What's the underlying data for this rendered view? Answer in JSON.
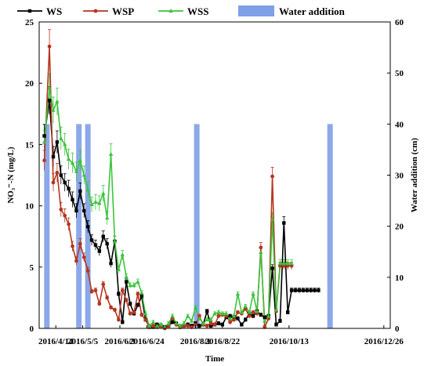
{
  "chart_data": {
    "type": "line",
    "xlabel": "Time",
    "ylabel": "NO₃⁻-N (mg/L)",
    "y2label": "Water addition (cm)",
    "ylim": [
      0,
      25
    ],
    "y2lim": [
      0,
      60
    ],
    "yticks": [
      0,
      5,
      10,
      15,
      20,
      25
    ],
    "y2ticks": [
      0,
      10,
      20,
      30,
      40,
      50,
      60
    ],
    "xlim": [
      "2016-04-01",
      "2016-12-31"
    ],
    "xticks": [
      {
        "date": "2016-04-14",
        "label": "2016/4/14"
      },
      {
        "date": "2016-05-05",
        "label": "2016/5/5"
      },
      {
        "date": "2016-06-03",
        "label": "2016/6/3"
      },
      {
        "date": "2016-06-24",
        "label": "2016/6/24"
      },
      {
        "date": "2016-08-01",
        "label": "2016/8/1"
      },
      {
        "date": "2016-08-22",
        "label": "2016/8/22"
      },
      {
        "date": "2016-10-13",
        "label": "2016/10/13"
      },
      {
        "date": "2016-12-26",
        "label": "2016/12/26"
      }
    ],
    "legend_position": "top",
    "series": [
      {
        "name": "WS",
        "color": "#000000",
        "marker": "square",
        "x": [
          "2016-04-05",
          "2016-04-09",
          "2016-04-12",
          "2016-04-15",
          "2016-04-18",
          "2016-04-21",
          "2016-04-24",
          "2016-04-27",
          "2016-04-30",
          "2016-05-03",
          "2016-05-06",
          "2016-05-09",
          "2016-05-12",
          "2016-05-15",
          "2016-05-18",
          "2016-05-21",
          "2016-05-24",
          "2016-05-27",
          "2016-05-30",
          "2016-06-02",
          "2016-06-05",
          "2016-06-08",
          "2016-06-11",
          "2016-06-14",
          "2016-06-17",
          "2016-06-20",
          "2016-06-23",
          "2016-06-26",
          "2016-06-29",
          "2016-07-02",
          "2016-07-05",
          "2016-07-08",
          "2016-07-11",
          "2016-07-14",
          "2016-07-17",
          "2016-07-20",
          "2016-07-23",
          "2016-07-26",
          "2016-07-29",
          "2016-08-01",
          "2016-08-04",
          "2016-08-07",
          "2016-08-10",
          "2016-08-13",
          "2016-08-16",
          "2016-08-19",
          "2016-08-22",
          "2016-08-25",
          "2016-08-28",
          "2016-08-31",
          "2016-09-03",
          "2016-09-06",
          "2016-09-09",
          "2016-09-12",
          "2016-09-15",
          "2016-09-18",
          "2016-09-21",
          "2016-09-24",
          "2016-09-27",
          "2016-09-30",
          "2016-10-03",
          "2016-10-06",
          "2016-10-09",
          "2016-10-12",
          "2016-10-15",
          "2016-10-18",
          "2016-10-21",
          "2016-10-24",
          "2016-10-27",
          "2016-10-30",
          "2016-11-02",
          "2016-11-05"
        ],
        "y": [
          15.7,
          18.6,
          14.0,
          15.2,
          12.5,
          11.9,
          11.4,
          10.5,
          9.6,
          11.2,
          9.6,
          8.3,
          7.2,
          6.8,
          6.3,
          7.5,
          6.9,
          5.3,
          7.1,
          2.8,
          0.5,
          3.8,
          2.0,
          1.2,
          1.9,
          2.6,
          0.7,
          0.1,
          0.1,
          0.3,
          0.2,
          0.1,
          0.2,
          0.5,
          0.4,
          0.1,
          0.2,
          0.3,
          0.2,
          0.4,
          0.2,
          0.3,
          1.4,
          0.2,
          0.3,
          0.4,
          0.3,
          0.9,
          1.0,
          0.9,
          0.8,
          0.3,
          0.7,
          1.2,
          1.0,
          1.4,
          1.1,
          0.9,
          1.0,
          4.9,
          0.3,
          0.6,
          8.6,
          1.3,
          3.1,
          3.1,
          3.1,
          3.1,
          3.1,
          3.1,
          3.1,
          3.1
        ]
      },
      {
        "name": "WSP",
        "color": "#b5361f",
        "marker": "circle",
        "x": [
          "2016-04-05",
          "2016-04-09",
          "2016-04-12",
          "2016-04-15",
          "2016-04-18",
          "2016-04-21",
          "2016-04-24",
          "2016-04-27",
          "2016-04-30",
          "2016-05-03",
          "2016-05-06",
          "2016-05-09",
          "2016-05-12",
          "2016-05-15",
          "2016-05-18",
          "2016-05-21",
          "2016-05-24",
          "2016-05-27",
          "2016-05-30",
          "2016-06-02",
          "2016-06-05",
          "2016-06-08",
          "2016-06-11",
          "2016-06-14",
          "2016-06-17",
          "2016-06-20",
          "2016-06-23",
          "2016-06-26",
          "2016-06-29",
          "2016-07-02",
          "2016-07-05",
          "2016-07-08",
          "2016-07-11",
          "2016-07-14",
          "2016-07-17",
          "2016-07-20",
          "2016-07-23",
          "2016-07-26",
          "2016-07-29",
          "2016-08-01",
          "2016-08-04",
          "2016-08-07",
          "2016-08-10",
          "2016-08-13",
          "2016-08-16",
          "2016-08-19",
          "2016-08-22",
          "2016-08-25",
          "2016-08-28",
          "2016-08-31",
          "2016-09-03",
          "2016-09-06",
          "2016-09-09",
          "2016-09-12",
          "2016-09-15",
          "2016-09-18",
          "2016-09-21",
          "2016-09-24",
          "2016-09-27",
          "2016-09-30",
          "2016-10-03",
          "2016-10-06",
          "2016-10-09",
          "2016-10-12",
          "2016-10-15"
        ],
        "y": [
          13.7,
          23.0,
          11.9,
          12.7,
          9.7,
          9.2,
          8.5,
          6.7,
          5.5,
          6.9,
          5.8,
          4.7,
          3.0,
          3.1,
          2.0,
          3.6,
          2.5,
          1.7,
          1.5,
          0.7,
          3.1,
          2.3,
          1.2,
          1.3,
          2.8,
          1.1,
          0.7,
          0.1,
          0.2,
          0.1,
          0.2,
          0.0,
          0.2,
          0.8,
          0.3,
          0.1,
          0.2,
          0.2,
          0.1,
          0.3,
          1.0,
          0.3,
          0.2,
          0.4,
          0.3,
          1.0,
          1.1,
          1.0,
          0.5,
          0.7,
          1.3,
          1.2,
          1.6,
          1.0,
          1.3,
          1.2,
          6.6,
          0.1,
          0.8,
          12.4,
          1.4,
          5.1,
          5.1,
          5.1,
          5.1
        ]
      },
      {
        "name": "WSS",
        "color": "#3cc43c",
        "marker": "triangle",
        "x": [
          "2016-04-05",
          "2016-04-09",
          "2016-04-12",
          "2016-04-15",
          "2016-04-18",
          "2016-04-21",
          "2016-04-24",
          "2016-04-27",
          "2016-04-30",
          "2016-05-03",
          "2016-05-06",
          "2016-05-09",
          "2016-05-12",
          "2016-05-15",
          "2016-05-18",
          "2016-05-21",
          "2016-05-24",
          "2016-05-27",
          "2016-05-30",
          "2016-06-02",
          "2016-06-05",
          "2016-06-08",
          "2016-06-11",
          "2016-06-14",
          "2016-06-17",
          "2016-06-20",
          "2016-06-23",
          "2016-06-26",
          "2016-06-29",
          "2016-07-02",
          "2016-07-05",
          "2016-07-08",
          "2016-07-11",
          "2016-07-14",
          "2016-07-17",
          "2016-07-20",
          "2016-07-23",
          "2016-07-26",
          "2016-07-29",
          "2016-08-01",
          "2016-08-04",
          "2016-08-07",
          "2016-08-10",
          "2016-08-13",
          "2016-08-16",
          "2016-08-19",
          "2016-08-22",
          "2016-08-25",
          "2016-08-28",
          "2016-08-31",
          "2016-09-03",
          "2016-09-06",
          "2016-09-09",
          "2016-09-12",
          "2016-09-15",
          "2016-09-18",
          "2016-09-21",
          "2016-09-24",
          "2016-09-27",
          "2016-09-30",
          "2016-10-03",
          "2016-10-06",
          "2016-10-09",
          "2016-10-12",
          "2016-10-15"
        ],
        "y": [
          15.2,
          19.6,
          17.8,
          18.5,
          15.5,
          15.0,
          13.8,
          13.5,
          12.8,
          13.7,
          12.5,
          11.3,
          10.1,
          10.3,
          10.2,
          11.0,
          9.0,
          14.2,
          7.1,
          4.8,
          6.0,
          4.2,
          3.5,
          3.5,
          3.8,
          2.9,
          1.2,
          0.2,
          0.5,
          0.2,
          0.3,
          0.1,
          0.4,
          1.0,
          0.4,
          0.2,
          0.4,
          1.0,
          0.6,
          1.7,
          0.8,
          0.4,
          0.7,
          0.7,
          1.2,
          1.3,
          1.2,
          1.2,
          0.8,
          1.0,
          2.8,
          1.3,
          1.8,
          1.3,
          2.8,
          1.4,
          6.2,
          0.6,
          1.0,
          8.9,
          1.5,
          5.3,
          5.3,
          5.3,
          5.3
        ]
      }
    ],
    "water_addition": {
      "name": "Water addition",
      "color": "#7f9fe6",
      "x": [
        "2016-04-07",
        "2016-05-02",
        "2016-05-09",
        "2016-08-02",
        "2016-11-14"
      ],
      "values": [
        40,
        40,
        40,
        40,
        40
      ]
    }
  }
}
